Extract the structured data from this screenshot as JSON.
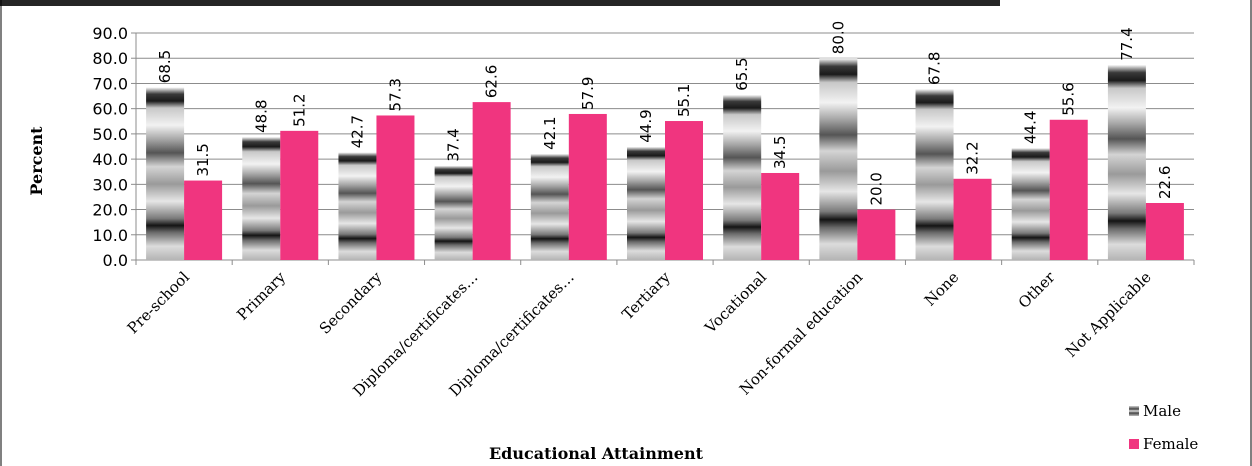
{
  "chart_data": {
    "type": "bar",
    "title": "",
    "xlabel": "Educational Attainment",
    "ylabel": "Percent",
    "ylim": [
      0,
      90
    ],
    "yticks": [
      "0.0",
      "10.0",
      "20.0",
      "30.0",
      "40.0",
      "50.0",
      "60.0",
      "70.0",
      "80.0",
      "90.0"
    ],
    "grid": true,
    "legend_position": "bottom-right",
    "categories": [
      "Pre-school",
      "Primary",
      "Secondary",
      "Diploma/certificates…",
      "Diploma/certificates…",
      "Tertiary",
      "Vocational",
      "Non-formal education",
      "None",
      "Other",
      "Not Applicable"
    ],
    "series": [
      {
        "name": "Male",
        "color": "#9a9a9a",
        "values": [
          68.5,
          48.8,
          42.7,
          37.4,
          42.1,
          44.9,
          65.5,
          80.0,
          67.8,
          44.4,
          77.4
        ],
        "labels": [
          "68.5",
          "48.8",
          "42.7",
          "37.4",
          "42.1",
          "44.9",
          "65.5",
          "80.0",
          "67.8",
          "44.4",
          "77.4"
        ]
      },
      {
        "name": "Female",
        "color": "#f0357f",
        "values": [
          31.5,
          51.2,
          57.3,
          62.6,
          57.9,
          55.1,
          34.5,
          20.0,
          32.2,
          55.6,
          22.6
        ],
        "labels": [
          "31.5",
          "51.2",
          "57.3",
          "62.6",
          "57.9",
          "55.1",
          "34.5",
          "20.0",
          "32.2",
          "55.6",
          "22.6"
        ]
      }
    ]
  }
}
